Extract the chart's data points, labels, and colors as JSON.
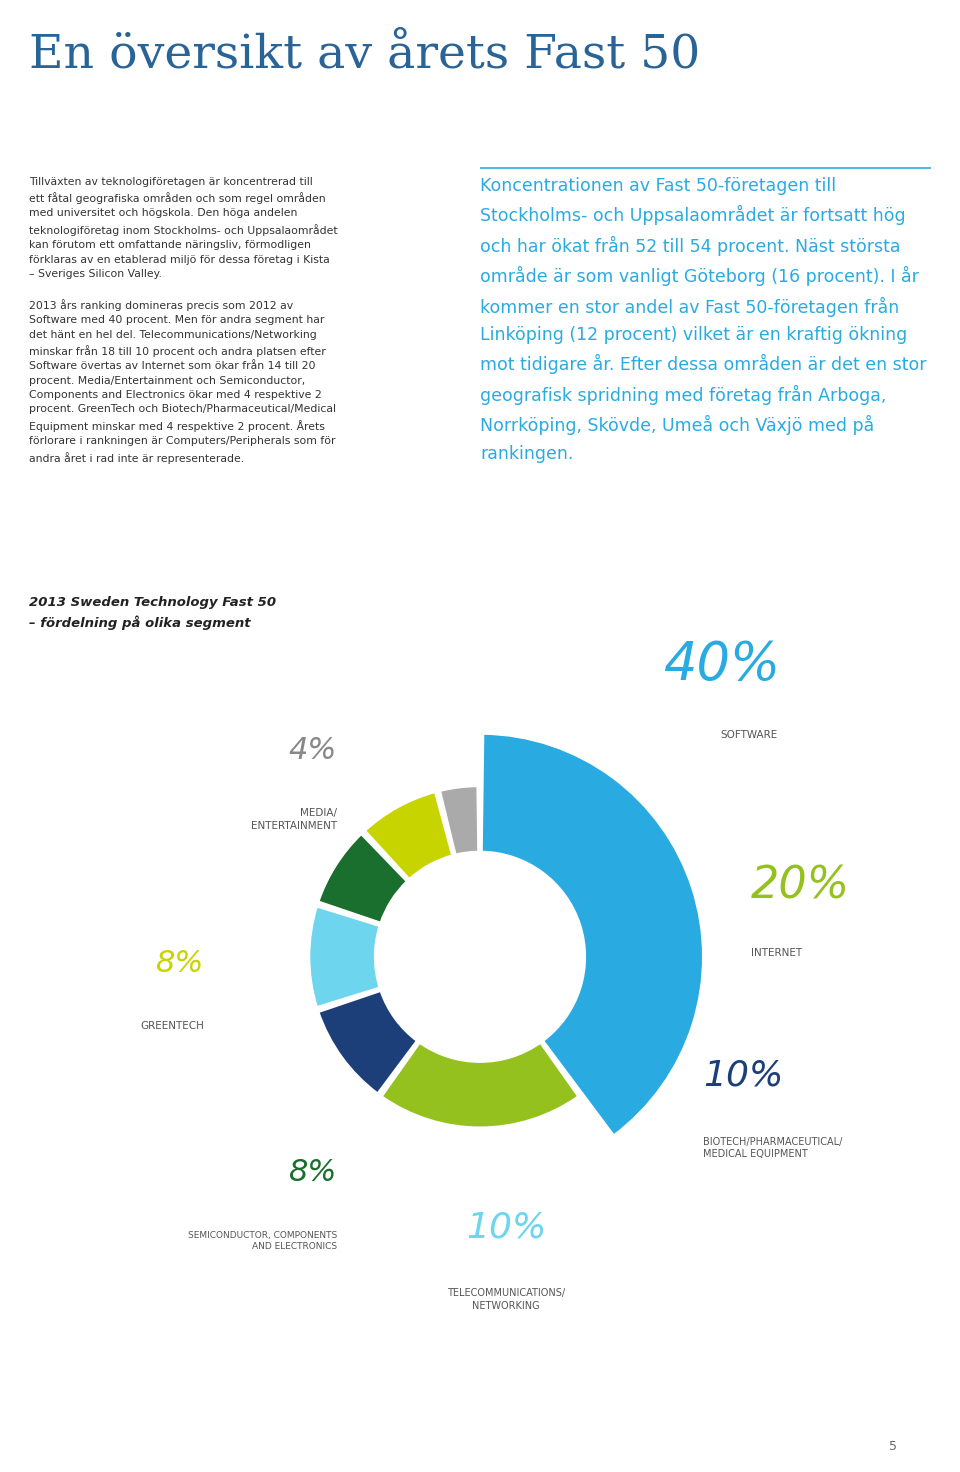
{
  "title": "En översikt av årets Fast 50",
  "title_color": "#2a6496",
  "title_fontsize": 34,
  "background_color": "#ffffff",
  "left_text": "Tillväxten av teknologiföretagen är koncentrerad till\nett fåtal geografiska områden och som regel områden\nmed universitet och högskola. Den höga andelen\nteknologiföretag inom Stockholms- och Uppsalaområdet\nkan förutom ett omfattande näringsliv, förmodligen\nförklaras av en etablerad miljö för dessa företag i Kista\n– Sveriges Silicon Valley.\n\n2013 års ranking domineras precis som 2012 av\nSoftware med 40 procent. Men för andra segment har\ndet hänt en hel del. Telecommunications/Networking\nminskar från 18 till 10 procent och andra platsen efter\nSoftware övertas av Internet som ökar från 14 till 20\nprocent. Media/Entertainment och Semiconductor,\nComponents and Electronics ökar med 4 respektive 2\nprocent. GreenTech och Biotech/Pharmaceutical/Medical\nEquipment minskar med 4 respektive 2 procent. Årets\nförlorare i rankningen är Computers/Peripherals som för\nandra året i rad inte är representerade.",
  "right_text": "Koncentrationen av Fast 50-företagen till\nStockholms- och Uppsalaområdet är fortsatt hög\noch har ökat från 52 till 54 procent. Näst största\nområde är som vanligt Göteborg (16 procent). I år\nkommer en stor andel av Fast 50-företagen från\nLinköping (12 procent) vilket är en kraftig ökning\nmot tidigare år. Efter dessa områden är det en stor\ngeografisk spridning med företag från Arboga,\nNorrköping, Skövde, Umeå och Växjö med på\nrankingen.",
  "chart_subtitle_line1": "2013 Sweden Technology Fast 50",
  "chart_subtitle_line2": "– fördelning på olika segment",
  "segments": [
    {
      "pct": "40%",
      "label": "SOFTWARE",
      "value": 40,
      "color": "#29abe2",
      "pct_color": "#29abe2",
      "lbl_color": "#666666",
      "explode": true
    },
    {
      "pct": "20%",
      "label": "INTERNET",
      "value": 20,
      "color": "#95c11f",
      "pct_color": "#95c11f",
      "lbl_color": "#666666",
      "explode": false
    },
    {
      "pct": "10%",
      "label": "BIOTECH/PHARMACEUTICAL/\nMEDICAL EQUIPMENT",
      "value": 10,
      "color": "#1c3f7a",
      "pct_color": "#1c3f7a",
      "lbl_color": "#666666",
      "explode": false
    },
    {
      "pct": "10%",
      "label": "TELECOMMUNICATIONS/\nNETWORKING",
      "value": 10,
      "color": "#6dd5ed",
      "pct_color": "#6dd5ed",
      "lbl_color": "#666666",
      "explode": false
    },
    {
      "pct": "8%",
      "label": "SEMICONDUCTOR, COMPONENTS\nAND ELECTRONICS",
      "value": 8,
      "color": "#1a6e2e",
      "pct_color": "#1a6e2e",
      "lbl_color": "#666666",
      "explode": false
    },
    {
      "pct": "8%",
      "label": "GREENTECH",
      "value": 8,
      "color": "#c8d400",
      "pct_color": "#c8d400",
      "lbl_color": "#666666",
      "explode": false
    },
    {
      "pct": "4%",
      "label": "MEDIA/\nENTERTAINMENT",
      "value": 4,
      "color": "#aaaaaa",
      "pct_color": "#888888",
      "lbl_color": "#666666",
      "explode": false
    }
  ],
  "page_number": "5"
}
